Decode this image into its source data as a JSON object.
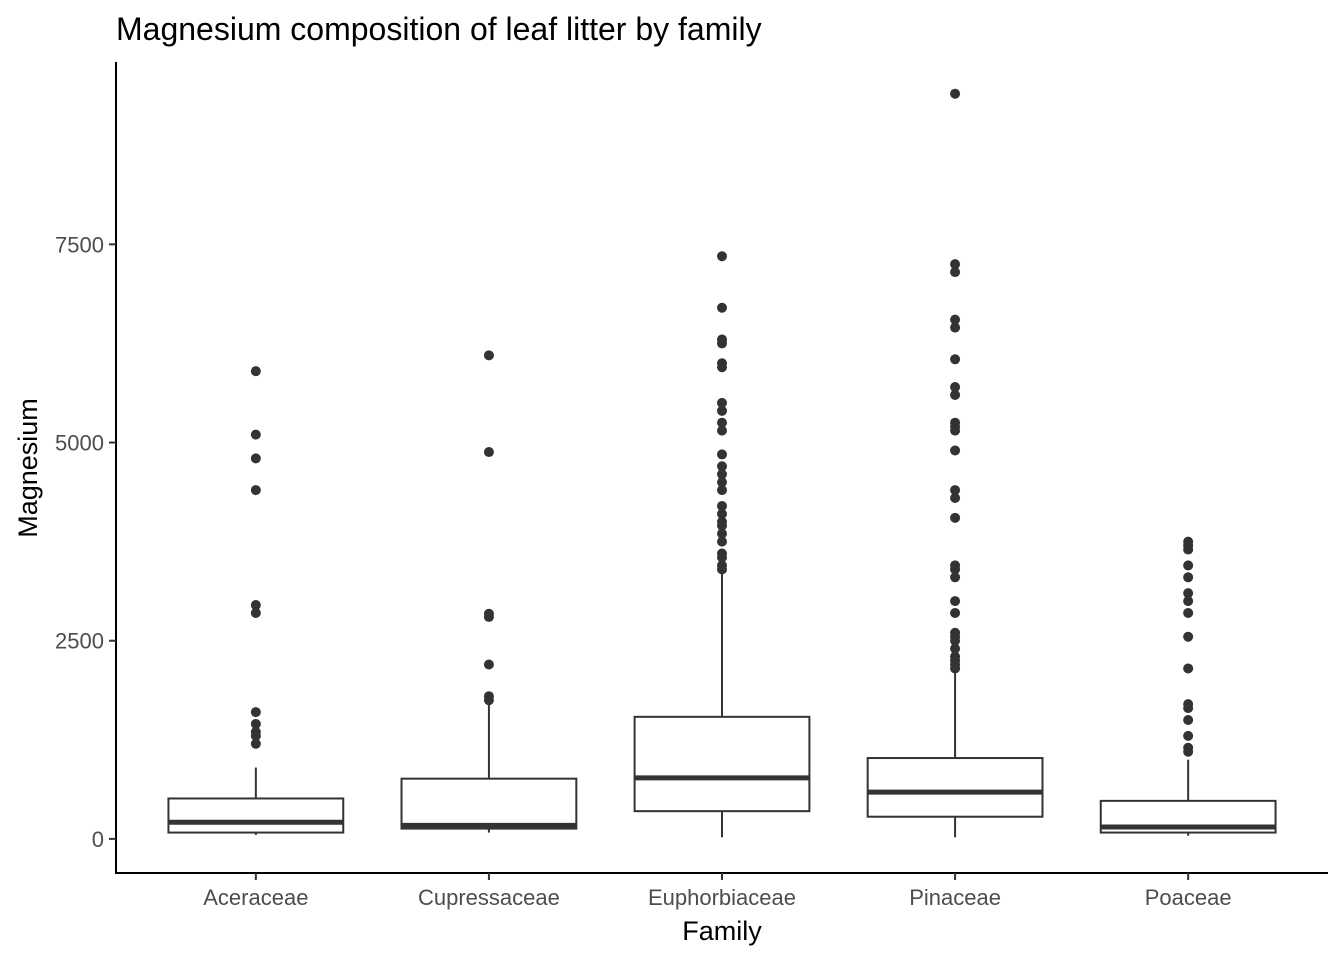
{
  "chart_data": {
    "type": "boxplot",
    "title": "Magnesium composition of leaf litter by family",
    "xlabel": "Family",
    "ylabel": "Magnesium",
    "ylim": [
      -430,
      9800
    ],
    "yticks": [
      0,
      2500,
      5000,
      7500
    ],
    "grid": false,
    "legend": "none",
    "colors": {
      "box_fill": "#ffffff",
      "line": "#333333",
      "axis": "#000000",
      "tick_label": "#4d4d4d",
      "title": "#000000"
    },
    "categories": [
      "Aceraceae",
      "Cupressaceae",
      "Euphorbiaceae",
      "Pinaceae",
      "Poaceae"
    ],
    "boxes": [
      {
        "category": "Aceraceae",
        "min": 50,
        "q1": 80,
        "median": 210,
        "q3": 510,
        "max": 900,
        "outliers": [
          5900,
          5100,
          4800,
          4400,
          2950,
          2850,
          1600,
          1450,
          1350,
          1300,
          1200
        ]
      },
      {
        "category": "Cupressaceae",
        "min": 80,
        "q1": 130,
        "median": 170,
        "q3": 760,
        "max": 1700,
        "outliers": [
          6100,
          4880,
          2840,
          2800,
          2200,
          1800,
          1750
        ]
      },
      {
        "category": "Euphorbiaceae",
        "min": 20,
        "q1": 350,
        "median": 770,
        "q3": 1540,
        "max": 3350,
        "outliers": [
          7350,
          6700,
          6300,
          6250,
          6000,
          5950,
          5500,
          5400,
          5250,
          5150,
          4850,
          4700,
          4600,
          4500,
          4400,
          4200,
          4100,
          4000,
          3950,
          3850,
          3750,
          3600,
          3550,
          3450,
          3400
        ]
      },
      {
        "category": "Pinaceae",
        "min": 20,
        "q1": 280,
        "median": 590,
        "q3": 1020,
        "max": 2100,
        "outliers": [
          9400,
          7250,
          7150,
          6550,
          6450,
          6050,
          5700,
          5600,
          5250,
          5200,
          5150,
          4900,
          4400,
          4300,
          4050,
          3450,
          3400,
          3300,
          3000,
          2850,
          2600,
          2550,
          2500,
          2400,
          2300,
          2250,
          2200,
          2150
        ]
      },
      {
        "category": "Poaceae",
        "min": 40,
        "q1": 80,
        "median": 150,
        "q3": 480,
        "max": 1000,
        "outliers": [
          3750,
          3700,
          3650,
          3450,
          3300,
          3100,
          3000,
          2850,
          2550,
          2150,
          1700,
          1650,
          1500,
          1300,
          1150,
          1100
        ]
      }
    ]
  }
}
